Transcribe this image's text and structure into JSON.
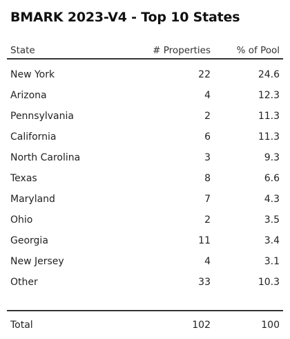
{
  "chart_data": {
    "type": "table",
    "title": "BMARK 2023-V4 - Top 10 States",
    "columns": [
      "State",
      "# Properties",
      "% of Pool"
    ],
    "rows": [
      {
        "state": "New York",
        "properties": "22",
        "pct": "24.6"
      },
      {
        "state": "Arizona",
        "properties": "4",
        "pct": "12.3"
      },
      {
        "state": "Pennsylvania",
        "properties": "2",
        "pct": "11.3"
      },
      {
        "state": "California",
        "properties": "6",
        "pct": "11.3"
      },
      {
        "state": "North Carolina",
        "properties": "3",
        "pct": "9.3"
      },
      {
        "state": "Texas",
        "properties": "8",
        "pct": "6.6"
      },
      {
        "state": "Maryland",
        "properties": "7",
        "pct": "4.3"
      },
      {
        "state": "Ohio",
        "properties": "2",
        "pct": "3.5"
      },
      {
        "state": "Georgia",
        "properties": "11",
        "pct": "3.4"
      },
      {
        "state": "New Jersey",
        "properties": "4",
        "pct": "3.1"
      },
      {
        "state": "Other",
        "properties": "33",
        "pct": "10.3"
      }
    ],
    "total": {
      "label": "Total",
      "properties": "102",
      "pct": "100"
    }
  }
}
